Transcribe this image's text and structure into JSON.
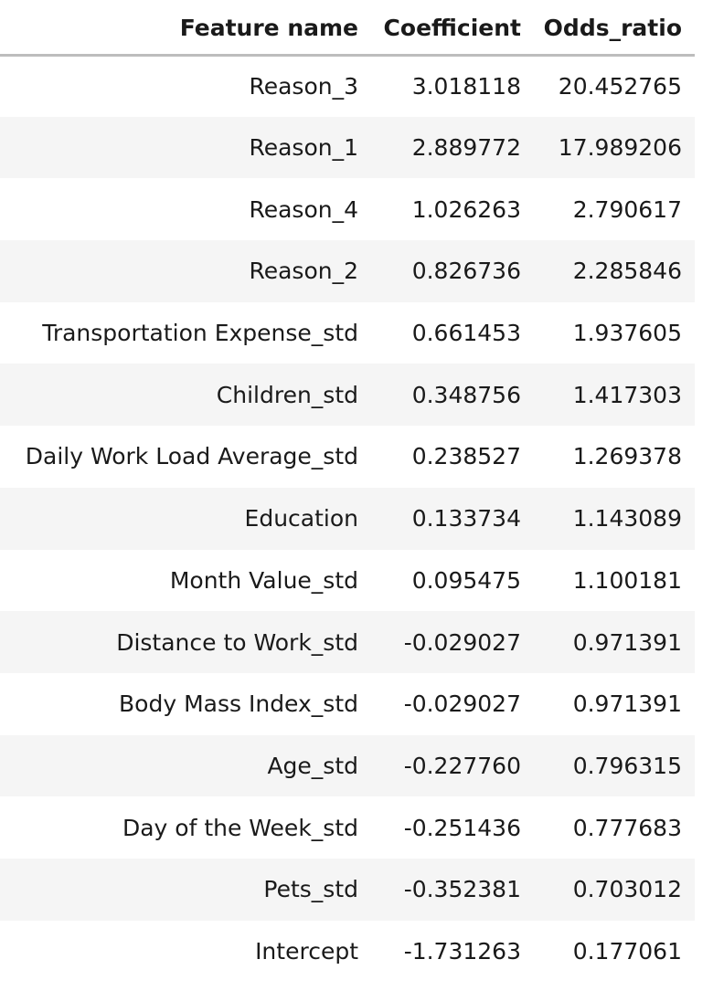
{
  "table": {
    "columns": [
      "Feature name",
      "Coefficient",
      "Odds_ratio"
    ],
    "rows": [
      [
        "Reason_3",
        "3.018118",
        "20.452765"
      ],
      [
        "Reason_1",
        "2.889772",
        "17.989206"
      ],
      [
        "Reason_4",
        "1.026263",
        "2.790617"
      ],
      [
        "Reason_2",
        "0.826736",
        "2.285846"
      ],
      [
        "Transportation Expense_std",
        "0.661453",
        "1.937605"
      ],
      [
        "Children_std",
        "0.348756",
        "1.417303"
      ],
      [
        "Daily Work Load Average_std",
        "0.238527",
        "1.269378"
      ],
      [
        "Education",
        "0.133734",
        "1.143089"
      ],
      [
        "Month Value_std",
        "0.095475",
        "1.100181"
      ],
      [
        "Distance to Work_std",
        "-0.029027",
        "0.971391"
      ],
      [
        "Body Mass Index_std",
        "-0.029027",
        "0.971391"
      ],
      [
        "Age_std",
        "-0.227760",
        "0.796315"
      ],
      [
        "Day of the Week_std",
        "-0.251436",
        "0.777683"
      ],
      [
        "Pets_std",
        "-0.352381",
        "0.703012"
      ],
      [
        "Intercept",
        "-1.731263",
        "0.177061"
      ]
    ]
  },
  "colors": {
    "stripe": "#f5f5f5",
    "header_rule": "#bdbdbd",
    "text": "#1a1a1a"
  }
}
